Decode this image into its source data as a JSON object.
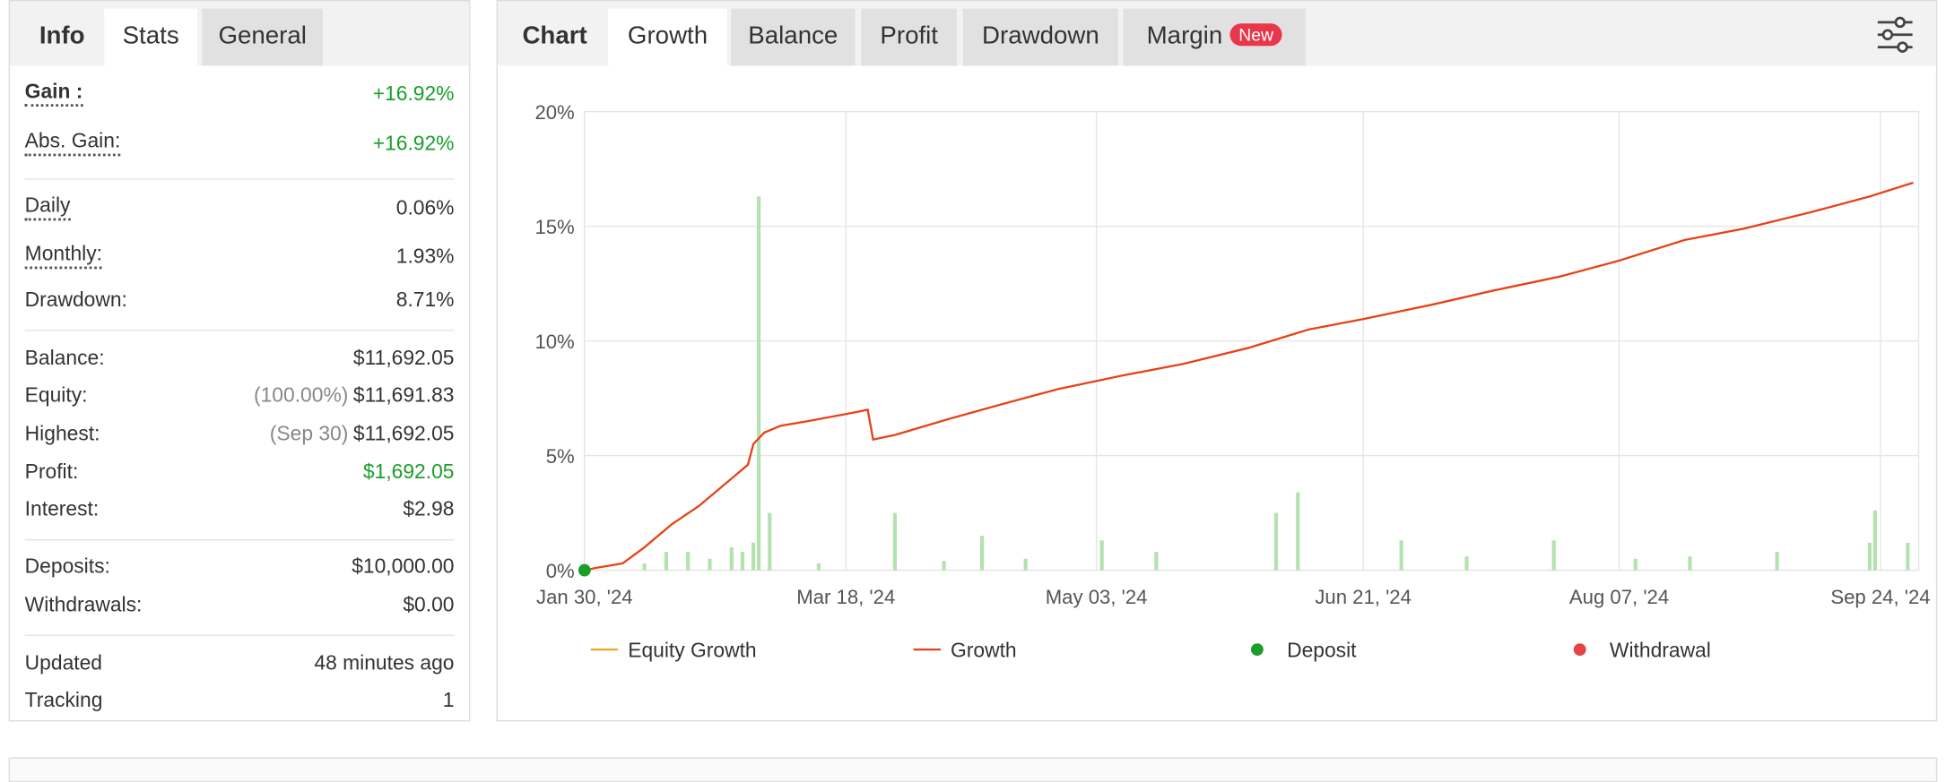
{
  "left_panel": {
    "tabs": [
      "Info",
      "Stats",
      "General"
    ],
    "sections": [
      [
        {
          "label": "Gain :",
          "value": "+16.92%",
          "color": "#1a9e2a"
        },
        {
          "label": "Abs. Gain:",
          "value": "+16.92%",
          "color": "#1a9e2a"
        }
      ],
      [
        {
          "label": "Daily",
          "value": "0.06%"
        },
        {
          "label": "Monthly:",
          "value": "1.93%"
        },
        {
          "label": "Drawdown:",
          "value": "8.71%"
        }
      ],
      [
        {
          "label": "Balance:",
          "value": "$11,692.05"
        },
        {
          "label": "Equity:",
          "note": "(100.00%)",
          "value": "$11,691.83"
        },
        {
          "label": "Highest:",
          "note": "(Sep 30)",
          "value": "$11,692.05"
        },
        {
          "label": "Profit:",
          "value": "$1,692.05",
          "color": "#1a9e2a"
        },
        {
          "label": "Interest:",
          "value": "$2.98"
        }
      ],
      [
        {
          "label": "Deposits:",
          "value": "$10,000.00"
        },
        {
          "label": "Withdrawals:",
          "value": "$0.00"
        }
      ],
      [
        {
          "label": "Updated",
          "value": "48 minutes ago"
        },
        {
          "label": "Tracking",
          "value": "1"
        }
      ]
    ]
  },
  "right_panel": {
    "tabs": [
      "Chart",
      "Growth",
      "Balance",
      "Profit",
      "Drawdown",
      "Margin"
    ],
    "badge": "New"
  },
  "chart_data": {
    "type": "line",
    "xlim": [
      "2024-01-30",
      "2024-10-01"
    ],
    "xticks": [
      {
        "value": "2024-01-30",
        "label": "Jan 30, '24"
      },
      {
        "value": "2024-03-18",
        "label": "Mar 18, '24"
      },
      {
        "value": "2024-05-03",
        "label": "May 03, '24"
      },
      {
        "value": "2024-06-21",
        "label": "Jun 21, '24"
      },
      {
        "value": "2024-08-07",
        "label": "Aug 07, '24"
      },
      {
        "value": "2024-09-24",
        "label": "Sep 24, '24"
      }
    ],
    "ylim": [
      0,
      20
    ],
    "yticks": [
      {
        "value": 0,
        "label": "0%"
      },
      {
        "value": 5,
        "label": "5%"
      },
      {
        "value": 10,
        "label": "10%"
      },
      {
        "value": 15,
        "label": "15%"
      },
      {
        "value": 20,
        "label": "20%"
      }
    ],
    "grid": true,
    "series": [
      {
        "name": "Equity Growth",
        "color": "#f5a623",
        "kind": "line",
        "x": [
          "2024-01-30",
          "2024-02-01",
          "2024-02-06",
          "2024-02-10",
          "2024-02-15",
          "2024-02-20",
          "2024-02-24",
          "2024-02-29",
          "2024-03-01",
          "2024-03-03",
          "2024-03-06",
          "2024-03-11",
          "2024-03-20",
          "2024-03-22",
          "2024-03-23",
          "2024-03-27",
          "2024-04-06",
          "2024-04-15",
          "2024-04-26",
          "2024-05-08",
          "2024-05-19",
          "2024-05-31",
          "2024-06-11",
          "2024-06-22",
          "2024-07-04",
          "2024-07-15",
          "2024-07-27",
          "2024-08-07",
          "2024-08-19",
          "2024-08-30",
          "2024-09-11",
          "2024-09-22",
          "2024-09-30"
        ],
        "values": [
          0,
          0.1,
          0.3,
          1.0,
          2.0,
          2.8,
          3.6,
          4.6,
          5.5,
          6.0,
          6.3,
          6.5,
          6.9,
          7.0,
          5.7,
          5.9,
          6.6,
          7.2,
          7.9,
          8.5,
          9.0,
          9.7,
          10.5,
          11.0,
          11.6,
          12.2,
          12.8,
          13.5,
          14.4,
          14.9,
          15.6,
          16.3,
          16.9
        ]
      },
      {
        "name": "Growth",
        "color": "#e8401c",
        "kind": "line",
        "x": [
          "2024-01-30",
          "2024-02-01",
          "2024-02-06",
          "2024-02-10",
          "2024-02-15",
          "2024-02-20",
          "2024-02-24",
          "2024-02-29",
          "2024-03-01",
          "2024-03-03",
          "2024-03-06",
          "2024-03-11",
          "2024-03-20",
          "2024-03-22",
          "2024-03-23",
          "2024-03-27",
          "2024-04-06",
          "2024-04-15",
          "2024-04-26",
          "2024-05-08",
          "2024-05-19",
          "2024-05-31",
          "2024-06-11",
          "2024-06-22",
          "2024-07-04",
          "2024-07-15",
          "2024-07-27",
          "2024-08-07",
          "2024-08-19",
          "2024-08-30",
          "2024-09-11",
          "2024-09-22",
          "2024-09-30"
        ],
        "values": [
          0,
          0.1,
          0.3,
          1.0,
          2.0,
          2.8,
          3.6,
          4.6,
          5.5,
          6.0,
          6.3,
          6.5,
          6.9,
          7.0,
          5.7,
          5.9,
          6.6,
          7.2,
          7.9,
          8.5,
          9.0,
          9.7,
          10.5,
          11.0,
          11.6,
          12.2,
          12.8,
          13.5,
          14.4,
          14.9,
          15.6,
          16.3,
          16.9
        ]
      },
      {
        "name": "Deposit",
        "color": "#1a9e2a",
        "kind": "marker",
        "x": [
          "2024-01-30"
        ],
        "values": [
          0
        ]
      },
      {
        "name": "Withdrawal",
        "color": "#e84343",
        "kind": "marker",
        "x": [],
        "values": []
      }
    ],
    "bars": {
      "color": "#b5e0b0",
      "x": [
        "2024-02-10",
        "2024-02-14",
        "2024-02-18",
        "2024-02-22",
        "2024-02-26",
        "2024-02-28",
        "2024-03-01",
        "2024-03-02",
        "2024-03-04",
        "2024-03-13",
        "2024-03-27",
        "2024-04-05",
        "2024-04-12",
        "2024-04-20",
        "2024-05-04",
        "2024-05-14",
        "2024-06-05",
        "2024-06-09",
        "2024-06-28",
        "2024-07-10",
        "2024-07-26",
        "2024-08-10",
        "2024-08-20",
        "2024-09-05",
        "2024-09-22",
        "2024-09-23",
        "2024-09-29"
      ],
      "values": [
        0.3,
        0.8,
        0.8,
        0.5,
        1.0,
        0.8,
        1.2,
        16.3,
        2.5,
        0.3,
        2.5,
        0.4,
        1.5,
        0.5,
        1.3,
        0.8,
        2.5,
        3.4,
        1.3,
        0.6,
        1.3,
        0.5,
        0.6,
        0.8,
        1.2,
        2.6,
        1.2
      ]
    }
  }
}
